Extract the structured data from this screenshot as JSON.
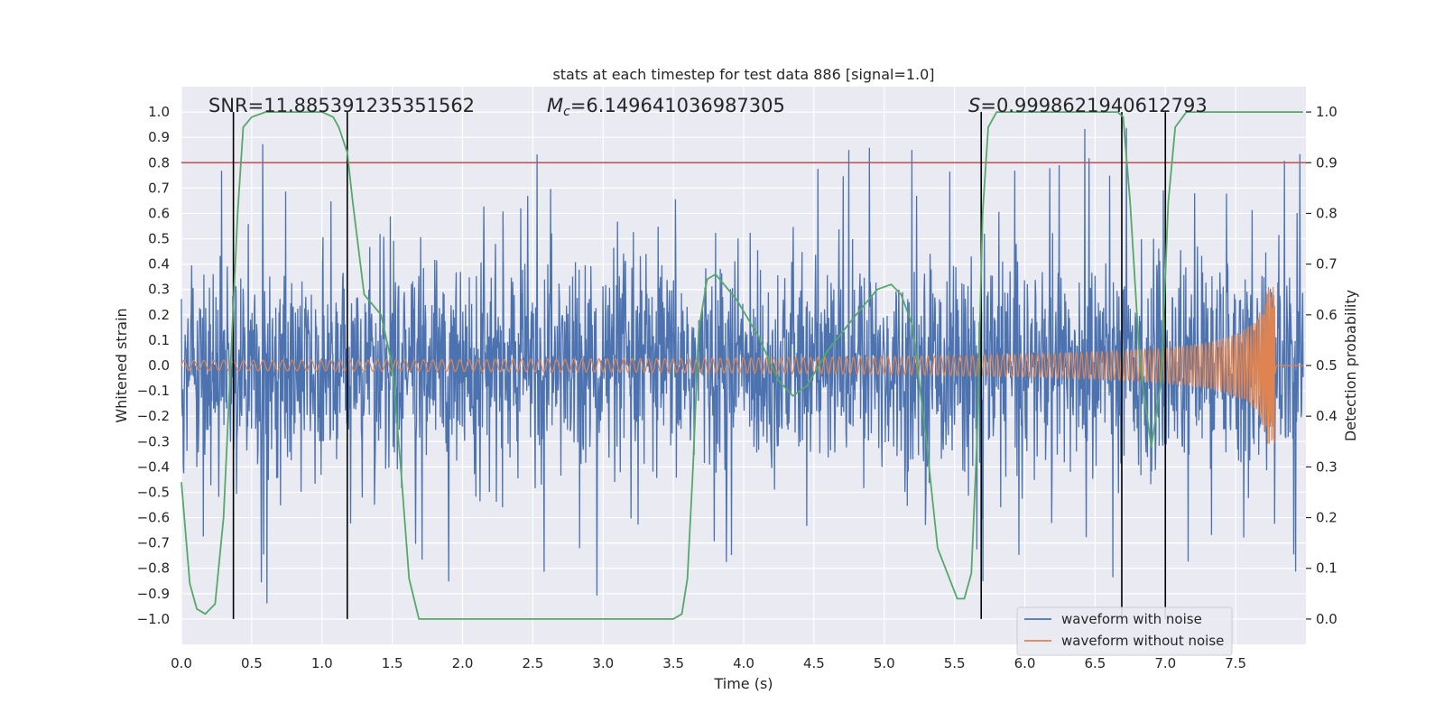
{
  "chart_data": {
    "type": "line",
    "title": "stats at each timestep for test data 886 [signal=1.0]",
    "xlabel": "Time (s)",
    "ylabel": "Whitened strain",
    "y2label": "Detection probability",
    "xlim": [
      0.0,
      8.0
    ],
    "ylim": [
      -1.1,
      1.1
    ],
    "y2lim": [
      -0.05,
      1.05
    ],
    "x_ticks": [
      0.0,
      0.5,
      1.0,
      1.5,
      2.0,
      2.5,
      3.0,
      3.5,
      4.0,
      4.5,
      5.0,
      5.5,
      6.0,
      6.5,
      7.0,
      7.5
    ],
    "x_tick_labels": [
      "0.0",
      "0.5",
      "1.0",
      "1.5",
      "2.0",
      "2.5",
      "3.0",
      "3.5",
      "4.0",
      "4.5",
      "5.0",
      "5.5",
      "6.0",
      "6.5",
      "7.0",
      "7.5"
    ],
    "y_ticks": [
      1.0,
      0.9,
      0.8,
      0.7,
      0.6,
      0.5,
      0.4,
      0.3,
      0.2,
      0.1,
      0.0,
      -0.1,
      -0.2,
      -0.3,
      -0.4,
      -0.5,
      -0.6,
      -0.7,
      -0.8,
      -0.9,
      -1.0
    ],
    "y_tick_labels": [
      "1.0",
      "0.9",
      "0.8",
      "0.7",
      "0.6",
      "0.5",
      "0.4",
      "0.3",
      "0.2",
      "0.1",
      "0.0",
      "−0.1",
      "−0.2",
      "−0.3",
      "−0.4",
      "−0.5",
      "−0.6",
      "−0.7",
      "−0.8",
      "−0.9",
      "−1.0"
    ],
    "y2_ticks": [
      1.0,
      0.9,
      0.8,
      0.7,
      0.6,
      0.5,
      0.4,
      0.3,
      0.2,
      0.1,
      0.0
    ],
    "y2_tick_labels": [
      "1.0",
      "0.9",
      "0.8",
      "0.7",
      "0.6",
      "0.5",
      "0.4",
      "0.3",
      "0.2",
      "0.1",
      "0.0"
    ],
    "grid": true,
    "annotations": {
      "snr": "SNR=11.885391235351562",
      "mc_symbol": "M",
      "mc_subscript": "c",
      "mc_value": "=6.149641036987305",
      "s_symbol": "S",
      "s_value": "=0.9998621940612793"
    },
    "threshold": {
      "value": 0.8,
      "color": "#c44e52"
    },
    "vertical_lines": [
      0.37,
      1.18,
      5.69,
      6.69,
      7.0
    ],
    "colors": {
      "noise": "#4c72b0",
      "clean": "#dd8452",
      "prob": "#55a868",
      "background": "#eaeaf2",
      "vlines": "#000000"
    },
    "series": [
      {
        "name": "waveform with noise",
        "kind": "noise",
        "axis": "left",
        "start": 0.0,
        "end": 7.98,
        "typical_amplitude": 0.38,
        "peak_amplitude": 1.0
      },
      {
        "name": "waveform without noise",
        "kind": "chirp",
        "axis": "left",
        "start": 0.0,
        "merger": 7.78,
        "end": 7.98,
        "amplitude_start": 0.02,
        "amplitude_peak": 0.31
      },
      {
        "name": "Detection probability",
        "kind": "line",
        "axis": "right",
        "legend": false,
        "x": [
          0.0,
          0.06,
          0.11,
          0.17,
          0.24,
          0.3,
          0.35,
          0.4,
          0.44,
          0.5,
          0.6,
          0.75,
          0.9,
          1.0,
          1.08,
          1.12,
          1.18,
          1.22,
          1.3,
          1.42,
          1.5,
          1.56,
          1.62,
          1.69,
          1.76,
          2.0,
          3.0,
          3.4,
          3.5,
          3.56,
          3.6,
          3.64,
          3.68,
          3.74,
          3.8,
          3.95,
          4.1,
          4.25,
          4.35,
          4.45,
          4.6,
          4.8,
          4.95,
          5.05,
          5.12,
          5.2,
          5.3,
          5.38,
          5.45,
          5.52,
          5.57,
          5.62,
          5.66,
          5.7,
          5.74,
          5.8,
          6.0,
          6.4,
          6.66,
          6.7,
          6.75,
          6.82,
          6.9,
          6.97,
          7.02,
          7.07,
          7.15,
          7.5,
          7.98
        ],
        "y": [
          0.27,
          0.07,
          0.02,
          0.01,
          0.03,
          0.2,
          0.5,
          0.8,
          0.97,
          0.99,
          1.0,
          1.0,
          1.0,
          1.0,
          0.99,
          0.97,
          0.92,
          0.82,
          0.64,
          0.6,
          0.5,
          0.3,
          0.08,
          0.0,
          0.0,
          0.0,
          0.0,
          0.0,
          0.0,
          0.01,
          0.08,
          0.3,
          0.57,
          0.67,
          0.68,
          0.63,
          0.56,
          0.47,
          0.44,
          0.46,
          0.53,
          0.6,
          0.65,
          0.66,
          0.64,
          0.58,
          0.35,
          0.14,
          0.09,
          0.04,
          0.04,
          0.09,
          0.35,
          0.8,
          0.97,
          1.0,
          1.0,
          1.0,
          1.0,
          0.99,
          0.82,
          0.5,
          0.34,
          0.47,
          0.82,
          0.97,
          1.0,
          1.0,
          1.0
        ]
      }
    ]
  }
}
